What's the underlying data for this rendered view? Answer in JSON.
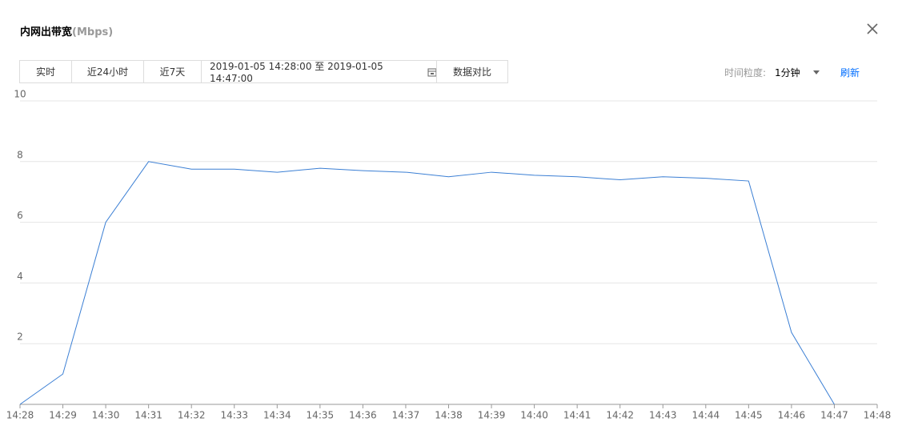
{
  "header": {
    "title": "内网出带宽",
    "unit": "(Mbps)"
  },
  "tabs": [
    "实时",
    "近24小时",
    "近7天"
  ],
  "date_range": "2019-01-05 14:28:00 至 2019-01-05 14:47:00",
  "compare_button": "数据对比",
  "granularity": {
    "label": "时间粒度:",
    "value": "1分钟"
  },
  "refresh": "刷新",
  "chart_data": {
    "type": "line",
    "categories": [
      "14:28",
      "14:29",
      "14:30",
      "14:31",
      "14:32",
      "14:33",
      "14:34",
      "14:35",
      "14:36",
      "14:37",
      "14:38",
      "14:39",
      "14:40",
      "14:41",
      "14:42",
      "14:43",
      "14:44",
      "14:45",
      "14:46",
      "14:47",
      "14:48"
    ],
    "series": [
      {
        "color": "#3b7fd4",
        "values": [
          0,
          1.0,
          6.0,
          8.0,
          7.75,
          7.75,
          7.65,
          7.78,
          7.7,
          7.65,
          7.5,
          7.65,
          7.55,
          7.5,
          7.4,
          7.5,
          7.45,
          7.36,
          2.37,
          0,
          null
        ]
      }
    ],
    "ylim": [
      0,
      10
    ],
    "yticks": [
      2,
      4,
      6,
      8,
      10
    ],
    "grid": true
  }
}
